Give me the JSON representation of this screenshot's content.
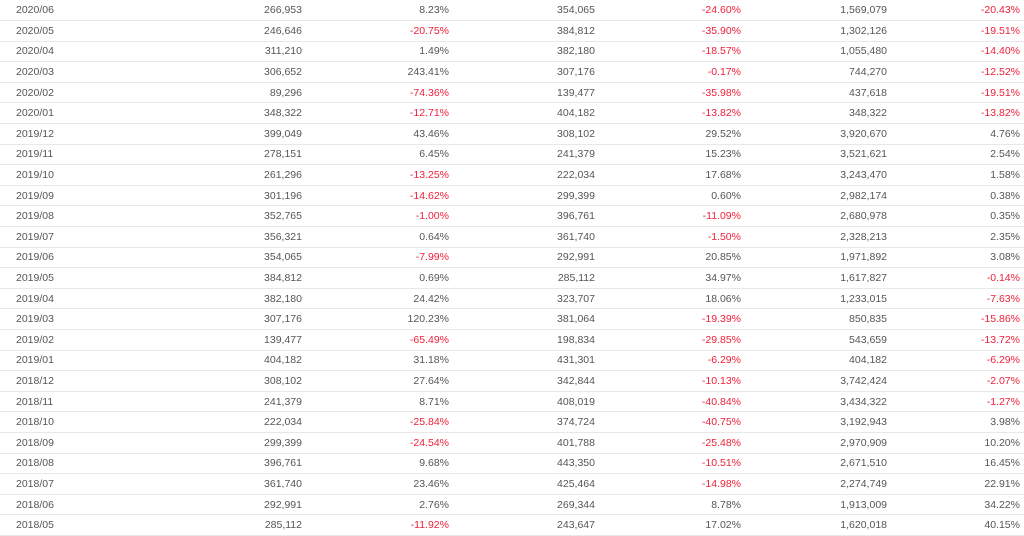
{
  "table": {
    "rows": [
      {
        "month": "2020/06",
        "c1": "266,953",
        "c2": "8.23%",
        "c3": "354,065",
        "c4": "-24.60%",
        "c5": "1,569,079",
        "c6": "-20.43%"
      },
      {
        "month": "2020/05",
        "c1": "246,646",
        "c2": "-20.75%",
        "c3": "384,812",
        "c4": "-35.90%",
        "c5": "1,302,126",
        "c6": "-19.51%"
      },
      {
        "month": "2020/04",
        "c1": "311,210",
        "c2": "1.49%",
        "c3": "382,180",
        "c4": "-18.57%",
        "c5": "1,055,480",
        "c6": "-14.40%"
      },
      {
        "month": "2020/03",
        "c1": "306,652",
        "c2": "243.41%",
        "c3": "307,176",
        "c4": "-0.17%",
        "c5": "744,270",
        "c6": "-12.52%"
      },
      {
        "month": "2020/02",
        "c1": "89,296",
        "c2": "-74.36%",
        "c3": "139,477",
        "c4": "-35.98%",
        "c5": "437,618",
        "c6": "-19.51%"
      },
      {
        "month": "2020/01",
        "c1": "348,322",
        "c2": "-12.71%",
        "c3": "404,182",
        "c4": "-13.82%",
        "c5": "348,322",
        "c6": "-13.82%"
      },
      {
        "month": "2019/12",
        "c1": "399,049",
        "c2": "43.46%",
        "c3": "308,102",
        "c4": "29.52%",
        "c5": "3,920,670",
        "c6": "4.76%"
      },
      {
        "month": "2019/11",
        "c1": "278,151",
        "c2": "6.45%",
        "c3": "241,379",
        "c4": "15.23%",
        "c5": "3,521,621",
        "c6": "2.54%"
      },
      {
        "month": "2019/10",
        "c1": "261,296",
        "c2": "-13.25%",
        "c3": "222,034",
        "c4": "17.68%",
        "c5": "3,243,470",
        "c6": "1.58%"
      },
      {
        "month": "2019/09",
        "c1": "301,196",
        "c2": "-14.62%",
        "c3": "299,399",
        "c4": "0.60%",
        "c5": "2,982,174",
        "c6": "0.38%"
      },
      {
        "month": "2019/08",
        "c1": "352,765",
        "c2": "-1.00%",
        "c3": "396,761",
        "c4": "-11.09%",
        "c5": "2,680,978",
        "c6": "0.35%"
      },
      {
        "month": "2019/07",
        "c1": "356,321",
        "c2": "0.64%",
        "c3": "361,740",
        "c4": "-1.50%",
        "c5": "2,328,213",
        "c6": "2.35%"
      },
      {
        "month": "2019/06",
        "c1": "354,065",
        "c2": "-7.99%",
        "c3": "292,991",
        "c4": "20.85%",
        "c5": "1,971,892",
        "c6": "3.08%"
      },
      {
        "month": "2019/05",
        "c1": "384,812",
        "c2": "0.69%",
        "c3": "285,112",
        "c4": "34.97%",
        "c5": "1,617,827",
        "c6": "-0.14%"
      },
      {
        "month": "2019/04",
        "c1": "382,180",
        "c2": "24.42%",
        "c3": "323,707",
        "c4": "18.06%",
        "c5": "1,233,015",
        "c6": "-7.63%"
      },
      {
        "month": "2019/03",
        "c1": "307,176",
        "c2": "120.23%",
        "c3": "381,064",
        "c4": "-19.39%",
        "c5": "850,835",
        "c6": "-15.86%"
      },
      {
        "month": "2019/02",
        "c1": "139,477",
        "c2": "-65.49%",
        "c3": "198,834",
        "c4": "-29.85%",
        "c5": "543,659",
        "c6": "-13.72%"
      },
      {
        "month": "2019/01",
        "c1": "404,182",
        "c2": "31.18%",
        "c3": "431,301",
        "c4": "-6.29%",
        "c5": "404,182",
        "c6": "-6.29%"
      },
      {
        "month": "2018/12",
        "c1": "308,102",
        "c2": "27.64%",
        "c3": "342,844",
        "c4": "-10.13%",
        "c5": "3,742,424",
        "c6": "-2.07%"
      },
      {
        "month": "2018/11",
        "c1": "241,379",
        "c2": "8.71%",
        "c3": "408,019",
        "c4": "-40.84%",
        "c5": "3,434,322",
        "c6": "-1.27%"
      },
      {
        "month": "2018/10",
        "c1": "222,034",
        "c2": "-25.84%",
        "c3": "374,724",
        "c4": "-40.75%",
        "c5": "3,192,943",
        "c6": "3.98%"
      },
      {
        "month": "2018/09",
        "c1": "299,399",
        "c2": "-24.54%",
        "c3": "401,788",
        "c4": "-25.48%",
        "c5": "2,970,909",
        "c6": "10.20%"
      },
      {
        "month": "2018/08",
        "c1": "396,761",
        "c2": "9.68%",
        "c3": "443,350",
        "c4": "-10.51%",
        "c5": "2,671,510",
        "c6": "16.45%"
      },
      {
        "month": "2018/07",
        "c1": "361,740",
        "c2": "23.46%",
        "c3": "425,464",
        "c4": "-14.98%",
        "c5": "2,274,749",
        "c6": "22.91%"
      },
      {
        "month": "2018/06",
        "c1": "292,991",
        "c2": "2.76%",
        "c3": "269,344",
        "c4": "8.78%",
        "c5": "1,913,009",
        "c6": "34.22%"
      },
      {
        "month": "2018/05",
        "c1": "285,112",
        "c2": "-11.92%",
        "c3": "243,647",
        "c4": "17.02%",
        "c5": "1,620,018",
        "c6": "40.15%"
      }
    ]
  },
  "colors": {
    "negative": "#f0203a",
    "text": "#555555",
    "rule": "#e8e8e8"
  }
}
